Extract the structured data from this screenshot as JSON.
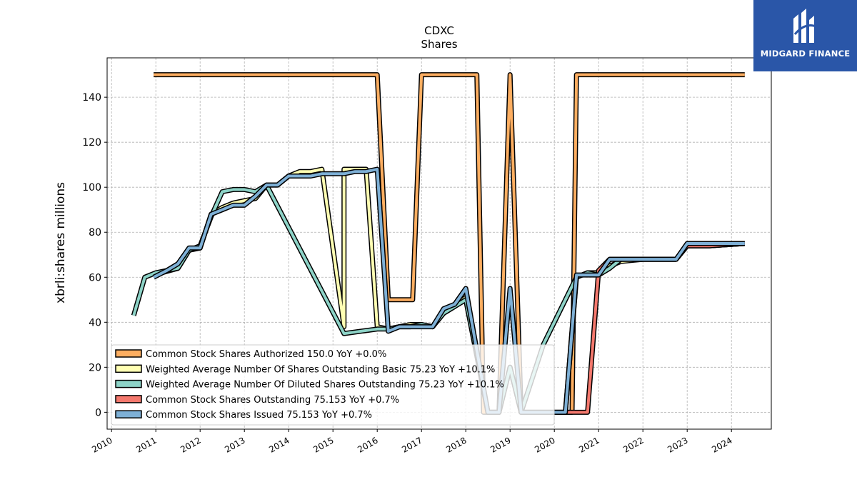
{
  "brand": {
    "name": "MIDGARD FINANCE"
  },
  "chart_data": {
    "type": "line",
    "title": "CDXC",
    "subtitle": "Shares",
    "ylabel": "xbrli:shares millions",
    "xlabel": "",
    "xlim": [
      2009.9,
      2024.9
    ],
    "ylim": [
      -7.5,
      157.5
    ],
    "yticks": [
      0,
      20,
      40,
      60,
      80,
      100,
      120,
      140
    ],
    "xticks": [
      2010,
      2011,
      2012,
      2013,
      2014,
      2015,
      2016,
      2017,
      2018,
      2019,
      2020,
      2021,
      2022,
      2023,
      2024
    ],
    "grid": true,
    "legend_position": "lower-left",
    "series": [
      {
        "name": "Common Stock Shares Authorized",
        "legend_label": "Common Stock Shares Authorized  150.0 YoY +0.0%",
        "color": "#fdae61",
        "points": [
          [
            2010.95,
            150
          ],
          [
            2016.0,
            150
          ],
          [
            2016.25,
            50
          ],
          [
            2016.8,
            50
          ],
          [
            2017.0,
            150
          ],
          [
            2018.25,
            150
          ],
          [
            2018.4,
            0
          ],
          [
            2018.75,
            0
          ],
          [
            2019.0,
            150
          ],
          [
            2019.25,
            0
          ],
          [
            2020.4,
            0
          ],
          [
            2020.5,
            150
          ],
          [
            2024.3,
            150
          ]
        ]
      },
      {
        "name": "Weighted Average Number Of Shares Outstanding Basic",
        "legend_label": "Weighted Average Number Of Shares Outstanding Basic  75.23 YoY +10.1%",
        "color": "#ffffb3",
        "points": [
          [
            2010.95,
            61
          ],
          [
            2011.5,
            64
          ],
          [
            2011.75,
            72
          ],
          [
            2012.0,
            73
          ],
          [
            2012.25,
            88
          ],
          [
            2012.5,
            91
          ],
          [
            2012.75,
            93
          ],
          [
            2013.0,
            94
          ],
          [
            2013.25,
            95
          ],
          [
            2013.5,
            101
          ],
          [
            2013.75,
            101
          ],
          [
            2014.0,
            105
          ],
          [
            2014.25,
            107
          ],
          [
            2014.5,
            107
          ],
          [
            2014.75,
            108
          ],
          [
            2015.25,
            38
          ],
          [
            2015.25,
            108
          ],
          [
            2015.75,
            108
          ],
          [
            2016.0,
            38
          ],
          [
            2016.25,
            37
          ],
          [
            2016.5,
            38
          ],
          [
            2016.75,
            39
          ],
          [
            2017.0,
            39
          ],
          [
            2017.25,
            38
          ],
          [
            2017.5,
            44
          ],
          [
            2017.75,
            47
          ],
          [
            2018.0,
            51
          ],
          [
            2018.5,
            0
          ],
          [
            2018.75,
            0
          ],
          [
            2019.0,
            20
          ],
          [
            2019.25,
            0
          ],
          [
            2019.75,
            0
          ],
          [
            2020.0,
            0
          ],
          [
            2020.25,
            0
          ],
          [
            2020.5,
            60
          ],
          [
            2020.75,
            62
          ],
          [
            2021.0,
            62
          ],
          [
            2021.25,
            65
          ],
          [
            2021.5,
            67
          ],
          [
            2022.0,
            68
          ],
          [
            2022.5,
            68
          ],
          [
            2022.75,
            68
          ],
          [
            2023.0,
            74
          ],
          [
            2023.5,
            74
          ],
          [
            2024.3,
            75
          ]
        ]
      },
      {
        "name": "Weighted Average Number Of Diluted Shares Outstanding",
        "legend_label": "Weighted Average Number Of Diluted Shares Outstanding  75.23 YoY +10.1%",
        "color": "#8dd3c7",
        "points": [
          [
            2010.5,
            43
          ],
          [
            2010.75,
            60
          ],
          [
            2011.0,
            62
          ],
          [
            2011.5,
            64
          ],
          [
            2011.75,
            72
          ],
          [
            2012.0,
            74
          ],
          [
            2012.25,
            87
          ],
          [
            2012.5,
            98
          ],
          [
            2012.75,
            99
          ],
          [
            2013.0,
            99
          ],
          [
            2013.25,
            98
          ],
          [
            2013.5,
            101
          ],
          [
            2015.25,
            35
          ],
          [
            2016.0,
            37
          ],
          [
            2016.25,
            37
          ],
          [
            2016.5,
            38
          ],
          [
            2016.75,
            38
          ],
          [
            2017.0,
            39
          ],
          [
            2017.25,
            38
          ],
          [
            2017.5,
            44
          ],
          [
            2017.75,
            47
          ],
          [
            2018.0,
            50
          ],
          [
            2018.5,
            0
          ],
          [
            2018.75,
            0
          ],
          [
            2019.0,
            20
          ],
          [
            2019.25,
            0
          ],
          [
            2019.75,
            30
          ],
          [
            2020.5,
            60
          ],
          [
            2020.75,
            62
          ],
          [
            2021.0,
            61
          ],
          [
            2021.25,
            64
          ],
          [
            2021.5,
            68
          ],
          [
            2022.0,
            68
          ],
          [
            2022.5,
            68
          ],
          [
            2022.75,
            68
          ],
          [
            2023.0,
            74
          ],
          [
            2023.5,
            74
          ],
          [
            2024.3,
            75
          ]
        ]
      },
      {
        "name": "Common Stock Shares Outstanding",
        "legend_label": "Common Stock Shares Outstanding  75.153 YoY +0.7%",
        "color": "#f4786d",
        "points": [
          [
            2020.25,
            0
          ],
          [
            2020.75,
            0
          ],
          [
            2021.0,
            63
          ],
          [
            2021.25,
            68
          ],
          [
            2021.5,
            68
          ],
          [
            2022.0,
            68
          ],
          [
            2022.75,
            68
          ],
          [
            2023.0,
            74
          ],
          [
            2023.5,
            74
          ],
          [
            2024.3,
            75
          ]
        ]
      },
      {
        "name": "Common Stock Shares Issued",
        "legend_label": "Common Stock Shares Issued  75.153 YoY +0.7%",
        "color": "#7eb0d6",
        "points": [
          [
            2010.95,
            60
          ],
          [
            2011.25,
            63
          ],
          [
            2011.5,
            66
          ],
          [
            2011.75,
            73
          ],
          [
            2012.0,
            73
          ],
          [
            2012.25,
            88
          ],
          [
            2012.5,
            90
          ],
          [
            2012.75,
            92
          ],
          [
            2013.0,
            92
          ],
          [
            2013.25,
            96
          ],
          [
            2013.5,
            101
          ],
          [
            2013.75,
            101
          ],
          [
            2014.0,
            105
          ],
          [
            2014.25,
            105
          ],
          [
            2014.5,
            105
          ],
          [
            2014.75,
            106
          ],
          [
            2015.0,
            106
          ],
          [
            2015.25,
            106
          ],
          [
            2015.5,
            107
          ],
          [
            2015.75,
            107
          ],
          [
            2016.0,
            108
          ],
          [
            2016.25,
            36
          ],
          [
            2016.5,
            38
          ],
          [
            2016.75,
            38
          ],
          [
            2017.0,
            38
          ],
          [
            2017.25,
            38
          ],
          [
            2017.5,
            46
          ],
          [
            2017.75,
            48
          ],
          [
            2018.0,
            55
          ],
          [
            2018.5,
            0
          ],
          [
            2018.75,
            0
          ],
          [
            2019.0,
            55
          ],
          [
            2019.25,
            0
          ],
          [
            2019.75,
            0
          ],
          [
            2020.0,
            0
          ],
          [
            2020.25,
            0
          ],
          [
            2020.5,
            61
          ],
          [
            2020.75,
            61
          ],
          [
            2021.0,
            61
          ],
          [
            2021.25,
            68
          ],
          [
            2021.5,
            68
          ],
          [
            2022.0,
            68
          ],
          [
            2022.5,
            68
          ],
          [
            2022.75,
            68
          ],
          [
            2023.0,
            75
          ],
          [
            2023.5,
            75
          ],
          [
            2024.3,
            75
          ]
        ]
      }
    ]
  }
}
